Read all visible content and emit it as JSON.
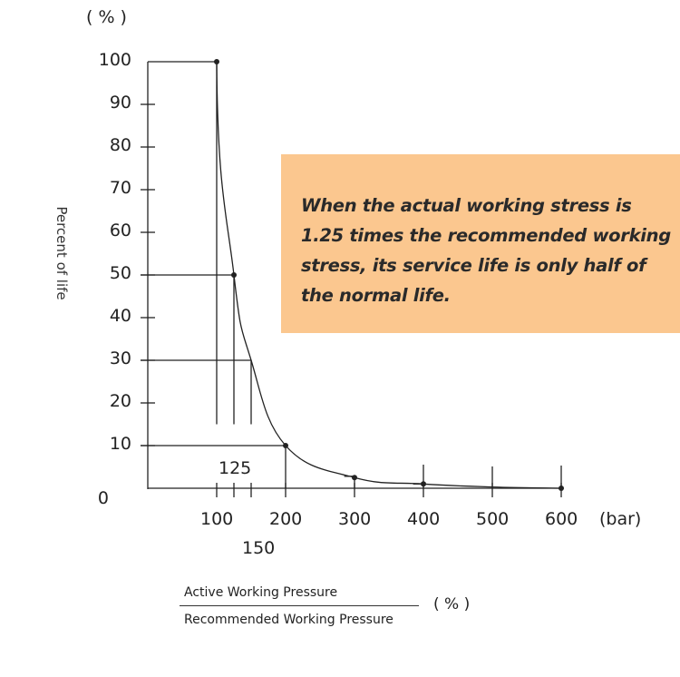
{
  "chart_data": {
    "type": "line",
    "x": [
      100,
      125,
      150,
      200,
      300,
      400,
      500,
      600
    ],
    "y": [
      100,
      50,
      30,
      10,
      2.5,
      1,
      0.3,
      0
    ],
    "marked_points_x": [
      100,
      125,
      200,
      300,
      400,
      600
    ],
    "y_unit_label": "( % )",
    "ylabel": "Percent of life",
    "x_unit_label": "(bar)",
    "y_ticks": [
      "0",
      "10",
      "20",
      "30",
      "40",
      "50",
      "60",
      "70",
      "80",
      "90",
      "100"
    ],
    "x_ticks": [
      "100",
      "200",
      "300",
      "400",
      "500",
      "600"
    ],
    "x_extra_ticks": [
      "125",
      "150"
    ],
    "ylim": [
      0,
      100
    ],
    "xlim": [
      0,
      600
    ],
    "grid": false,
    "line_color": "#222222",
    "xlabel_fraction": {
      "numerator": "Active Working Pressure",
      "denominator": "Recommended Working Pressure",
      "unit": "( % )"
    },
    "annotation": {
      "text": "When the actual working stress is 1.25 times the recommended working stress, its service life is only half of the normal life.",
      "background": "#fbc78f"
    }
  }
}
